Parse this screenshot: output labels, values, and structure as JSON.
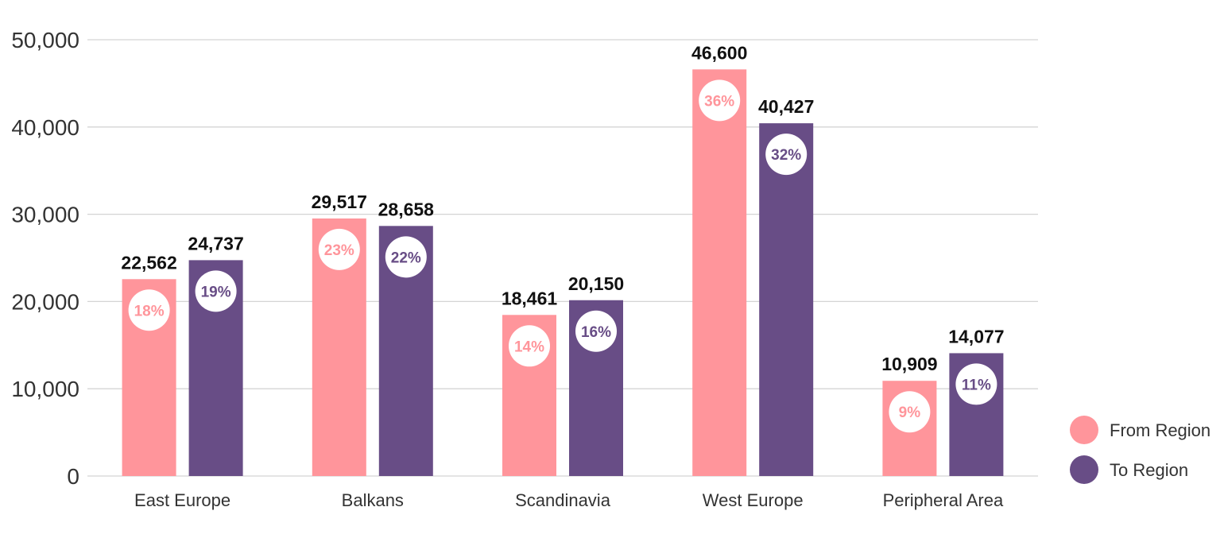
{
  "chart_data": {
    "type": "bar",
    "categories": [
      "East Europe",
      "Balkans",
      "Scandinavia",
      "West Europe",
      "Peripheral Area"
    ],
    "series": [
      {
        "name": "From Region",
        "color": "#ff959b",
        "values": [
          22562,
          29517,
          18461,
          46600,
          10909
        ],
        "value_labels": [
          "22,562",
          "29,517",
          "18,461",
          "46,600",
          "10,909"
        ],
        "percent_labels": [
          "18%",
          "23%",
          "14%",
          "36%",
          "9%"
        ]
      },
      {
        "name": "To Region",
        "color": "#684d86",
        "values": [
          24737,
          28658,
          20150,
          40427,
          14077
        ],
        "value_labels": [
          "24,737",
          "28,658",
          "20,150",
          "40,427",
          "14,077"
        ],
        "percent_labels": [
          "19%",
          "22%",
          "16%",
          "32%",
          "11%"
        ]
      }
    ],
    "title": "",
    "xlabel": "",
    "ylabel": "",
    "ylim": [
      0,
      50000
    ],
    "yticks": [
      0,
      10000,
      20000,
      30000,
      40000,
      50000
    ],
    "ytick_labels": [
      "0",
      "10,000",
      "20,000",
      "30,000",
      "40,000",
      "50,000"
    ],
    "grid": true,
    "legend_position": "bottom-right"
  }
}
